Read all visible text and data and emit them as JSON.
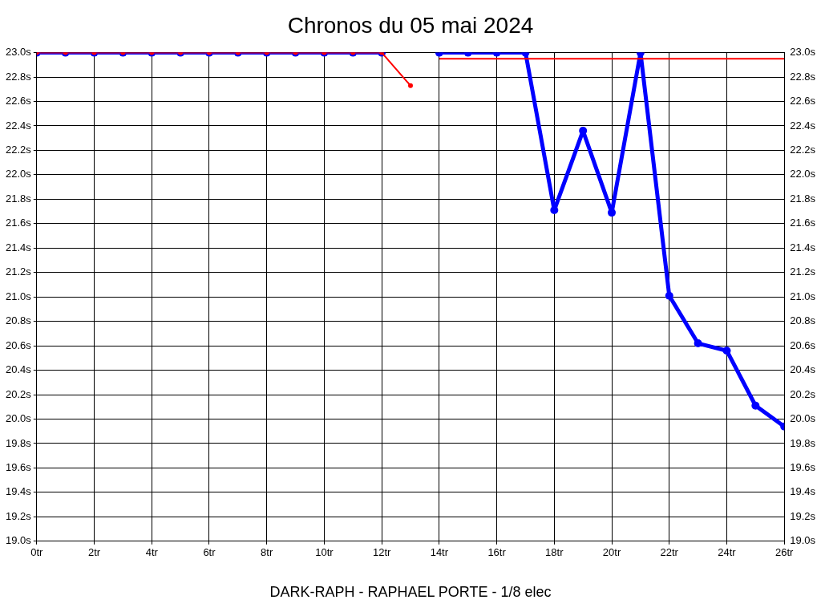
{
  "chart_data": {
    "type": "line",
    "title": "Chronos du 05 mai 2024",
    "xlabel": "DARK-RAPH - RAPHAEL PORTE - 1/8 elec",
    "xlim": [
      0,
      26
    ],
    "xticks": [
      {
        "value": 0,
        "label": "0tr"
      },
      {
        "value": 2,
        "label": "2tr"
      },
      {
        "value": 4,
        "label": "4tr"
      },
      {
        "value": 6,
        "label": "6tr"
      },
      {
        "value": 8,
        "label": "8tr"
      },
      {
        "value": 10,
        "label": "10tr"
      },
      {
        "value": 12,
        "label": "12tr"
      },
      {
        "value": 14,
        "label": "14tr"
      },
      {
        "value": 16,
        "label": "16tr"
      },
      {
        "value": 18,
        "label": "18tr"
      },
      {
        "value": 20,
        "label": "20tr"
      },
      {
        "value": 22,
        "label": "22tr"
      },
      {
        "value": 24,
        "label": "24tr"
      },
      {
        "value": 26,
        "label": "26tr"
      }
    ],
    "ylim": [
      19.0,
      23.0
    ],
    "yticks": [
      {
        "value": 19.0,
        "label": "19.0s"
      },
      {
        "value": 19.2,
        "label": "19.2s"
      },
      {
        "value": 19.4,
        "label": "19.4s"
      },
      {
        "value": 19.6,
        "label": "19.6s"
      },
      {
        "value": 19.8,
        "label": "19.8s"
      },
      {
        "value": 20.0,
        "label": "20.0s"
      },
      {
        "value": 20.2,
        "label": "20.2s"
      },
      {
        "value": 20.4,
        "label": "20.4s"
      },
      {
        "value": 20.6,
        "label": "20.6s"
      },
      {
        "value": 20.8,
        "label": "20.8s"
      },
      {
        "value": 21.0,
        "label": "21.0s"
      },
      {
        "value": 21.2,
        "label": "21.2s"
      },
      {
        "value": 21.4,
        "label": "21.4s"
      },
      {
        "value": 21.6,
        "label": "21.6s"
      },
      {
        "value": 21.8,
        "label": "21.8s"
      },
      {
        "value": 22.0,
        "label": "22.0s"
      },
      {
        "value": 22.2,
        "label": "22.2s"
      },
      {
        "value": 22.4,
        "label": "22.4s"
      },
      {
        "value": 22.6,
        "label": "22.6s"
      },
      {
        "value": 22.8,
        "label": "22.8s"
      },
      {
        "value": 23.0,
        "label": "23.0s"
      }
    ],
    "y2lim": [
      19.0,
      23.0
    ],
    "y2ticks": [
      {
        "value": 19.0,
        "label": "19.0s"
      },
      {
        "value": 19.2,
        "label": "19.2s"
      },
      {
        "value": 19.4,
        "label": "19.4s"
      },
      {
        "value": 19.6,
        "label": "19.6s"
      },
      {
        "value": 19.8,
        "label": "19.8s"
      },
      {
        "value": 20.0,
        "label": "20.0s"
      },
      {
        "value": 20.2,
        "label": "20.2s"
      },
      {
        "value": 20.4,
        "label": "20.4s"
      },
      {
        "value": 20.6,
        "label": "20.6s"
      },
      {
        "value": 20.8,
        "label": "20.8s"
      },
      {
        "value": 21.0,
        "label": "21.0s"
      },
      {
        "value": 21.2,
        "label": "21.2s"
      },
      {
        "value": 21.4,
        "label": "21.4s"
      },
      {
        "value": 21.6,
        "label": "21.6s"
      },
      {
        "value": 21.8,
        "label": "21.8s"
      },
      {
        "value": 22.0,
        "label": "22.0s"
      },
      {
        "value": 22.2,
        "label": "22.2s"
      },
      {
        "value": 22.4,
        "label": "22.4s"
      },
      {
        "value": 22.6,
        "label": "22.6s"
      },
      {
        "value": 22.8,
        "label": "22.8s"
      },
      {
        "value": 23.0,
        "label": "23.0s"
      }
    ],
    "grid": true,
    "legend": false,
    "marker": "circle",
    "line_style": "solid",
    "series": [
      {
        "color": "#0000ff",
        "x": [
          0,
          1,
          2,
          3,
          4,
          5,
          6,
          7,
          8,
          9,
          10,
          11,
          12,
          13,
          14,
          15,
          16,
          17,
          18,
          19,
          20,
          21,
          22,
          23,
          24,
          25,
          26
        ],
        "values": [
          23.0,
          23.0,
          23.0,
          23.0,
          23.0,
          23.0,
          23.0,
          23.0,
          23.0,
          23.0,
          23.0,
          23.0,
          23.0,
          null,
          23.0,
          23.0,
          23.0,
          23.0,
          21.71,
          22.36,
          21.69,
          23.0,
          21.01,
          20.62,
          20.56,
          20.11,
          19.94
        ]
      },
      {
        "color": "#ff0000",
        "x": [
          0,
          1,
          2,
          3,
          4,
          5,
          6,
          7,
          8,
          9,
          10,
          11,
          12,
          13
        ],
        "values": [
          23.0,
          23.0,
          23.0,
          23.0,
          23.0,
          23.0,
          23.0,
          23.0,
          23.0,
          23.0,
          23.0,
          23.0,
          23.0,
          22.73
        ]
      },
      {
        "color": "#ff0000",
        "marker": "none",
        "x": [
          14,
          26
        ],
        "values": [
          22.95,
          22.95
        ]
      }
    ]
  }
}
